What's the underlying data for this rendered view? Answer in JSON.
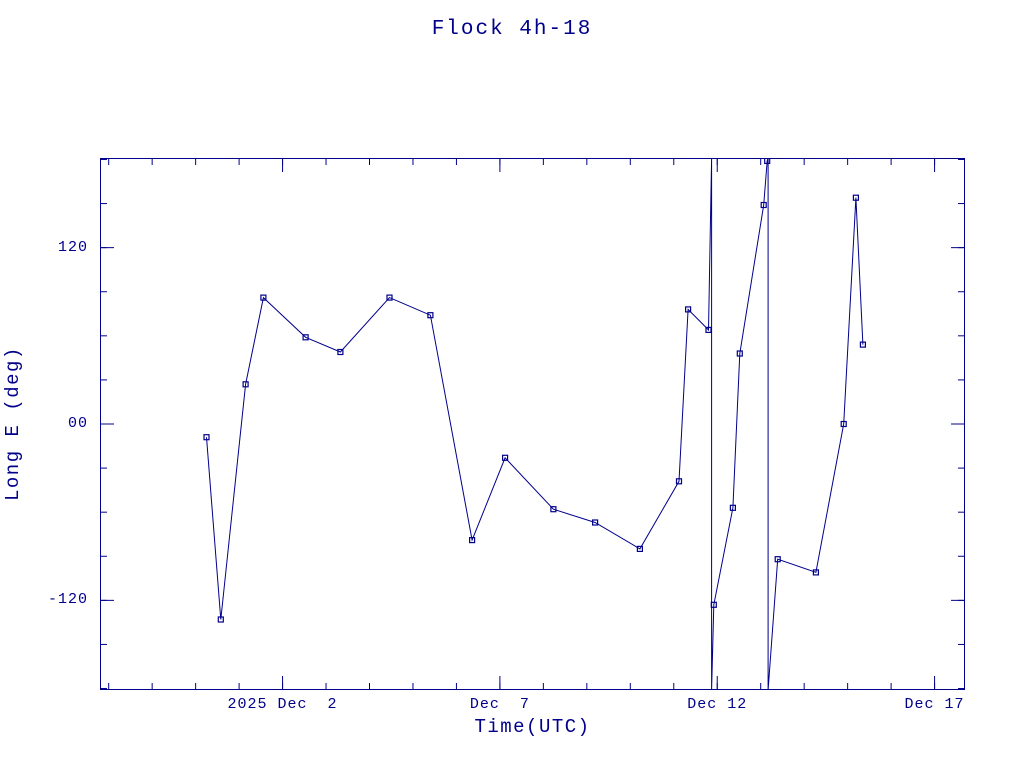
{
  "colors": {
    "ink": "#00008b",
    "background": "#ffffff"
  },
  "chart_data": {
    "type": "line",
    "title": "Flock 4h-18",
    "xlabel": "Time(UTC)",
    "ylabel": "Long E (deg)",
    "x_unit": "days, 0 = 2025 Nov 30 00:00 UTC",
    "xlim": [
      -2.2,
      17.7
    ],
    "ylim": [
      -181,
      181
    ],
    "x_major_ticks": [
      {
        "t": 2,
        "label": "2025 Dec  2"
      },
      {
        "t": 7,
        "label": "Dec  7"
      },
      {
        "t": 12,
        "label": "Dec 12"
      },
      {
        "t": 17,
        "label": "Dec 17"
      }
    ],
    "x_minor_step": 1,
    "y_major_ticks": [
      {
        "v": 120,
        "label": "120"
      },
      {
        "v": 0,
        "label": "00"
      },
      {
        "v": -120,
        "label": "-120"
      }
    ],
    "y_minor_step": 30,
    "grid": false,
    "legend": "none",
    "marker": "open-square",
    "points": [
      {
        "t": 0.25,
        "v": -9
      },
      {
        "t": 0.58,
        "v": -133
      },
      {
        "t": 1.15,
        "v": 27
      },
      {
        "t": 1.56,
        "v": 86
      },
      {
        "t": 2.53,
        "v": 59
      },
      {
        "t": 3.33,
        "v": 49
      },
      {
        "t": 4.46,
        "v": 86
      },
      {
        "t": 5.4,
        "v": 74
      },
      {
        "t": 6.36,
        "v": -79
      },
      {
        "t": 7.12,
        "v": -23
      },
      {
        "t": 8.23,
        "v": -58
      },
      {
        "t": 9.19,
        "v": -67
      },
      {
        "t": 10.22,
        "v": -85
      },
      {
        "t": 11.12,
        "v": -39
      },
      {
        "t": 11.33,
        "v": 78
      },
      {
        "t": 11.8,
        "v": 64
      },
      {
        "t": 11.87,
        "v": 181,
        "m": false
      },
      {
        "t": 11.87,
        "v": -181,
        "m": false
      },
      {
        "t": 11.92,
        "v": -123
      },
      {
        "t": 12.36,
        "v": -57
      },
      {
        "t": 12.52,
        "v": 48
      },
      {
        "t": 13.07,
        "v": 149
      },
      {
        "t": 13.15,
        "v": 179
      },
      {
        "t": 13.17,
        "v": 181,
        "m": false
      },
      {
        "t": 13.17,
        "v": -181,
        "m": false
      },
      {
        "t": 13.39,
        "v": -92
      },
      {
        "t": 14.27,
        "v": -101
      },
      {
        "t": 14.91,
        "v": 0
      },
      {
        "t": 15.19,
        "v": 154
      },
      {
        "t": 15.35,
        "v": 54
      }
    ]
  }
}
